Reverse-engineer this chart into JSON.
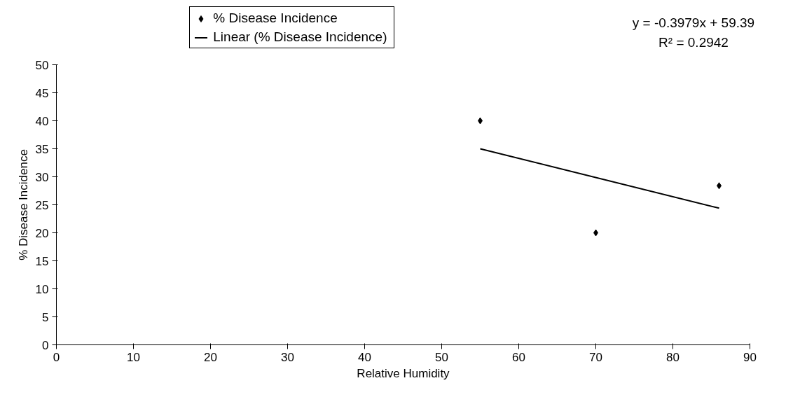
{
  "chart_data": {
    "type": "scatter",
    "xlabel": "Relative Humidity",
    "ylabel": "% Disease Incidence",
    "xlim": [
      0,
      90
    ],
    "xticks": [
      0,
      10,
      20,
      30,
      40,
      50,
      60,
      70,
      80,
      90
    ],
    "ylim": [
      0,
      50
    ],
    "yticks": [
      0,
      5,
      10,
      15,
      20,
      25,
      30,
      35,
      40,
      45,
      50
    ],
    "grid": false,
    "legend": "top",
    "series": [
      {
        "name": "% Disease Incidence",
        "marker": "diamond",
        "color": "#000000",
        "x": [
          55,
          70,
          86
        ],
        "values": [
          40,
          20,
          28.4
        ]
      },
      {
        "name": "Linear (% Disease Incidence)",
        "type": "line",
        "color": "#000000",
        "x": [
          55,
          86
        ],
        "values": [
          35,
          24.4
        ]
      }
    ],
    "annotations": [
      "y = -0.3979x + 59.39",
      "R² = 0.2942"
    ]
  }
}
